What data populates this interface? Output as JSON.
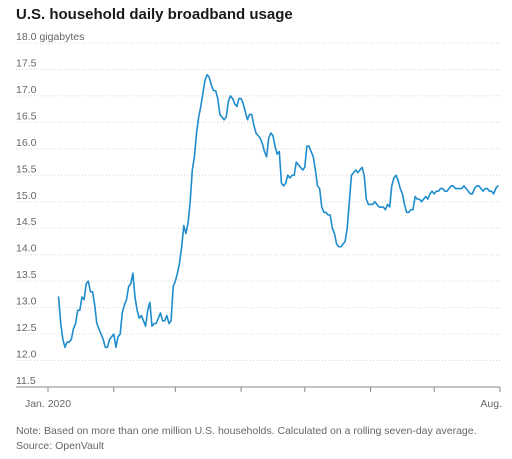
{
  "title": "U.S. household daily broadband usage",
  "note": "Note: Based on more than one million U.S. households. Calculated on a rolling seven-day average.",
  "source": "Source: OpenVault",
  "colors": {
    "line": "#1f8ccc",
    "text": "#666666",
    "title": "#1a1a1a"
  },
  "chart_data": {
    "type": "line",
    "title": "U.S. household daily broadband usage",
    "xlabel": "",
    "ylabel": "",
    "unit_label": "gigabytes",
    "ylim": [
      11.5,
      18.0
    ],
    "yticks": [
      11.5,
      12.0,
      12.5,
      13.0,
      13.5,
      14.0,
      14.5,
      15.0,
      15.5,
      16.0,
      16.5,
      17.0,
      17.5,
      18.0
    ],
    "ytick_labels": [
      "11.5",
      "12.0",
      "12.5",
      "13.0",
      "13.5",
      "14.0",
      "14.5",
      "15.0",
      "15.5",
      "16.0",
      "16.5",
      "17.0",
      "17.5",
      "18.0"
    ],
    "xlim": [
      0,
      213
    ],
    "x_unit": "day of 2020 (0 = Jan. 1)",
    "month_ticks": [
      0,
      31,
      60,
      91,
      121,
      152,
      182,
      213
    ],
    "x_tick_labels": [
      {
        "x": 0,
        "label": "Jan. 2020"
      },
      {
        "x": 213,
        "label": "Aug."
      }
    ],
    "grid": true,
    "legend": "none",
    "series": [
      {
        "x": [
          5,
          6,
          7,
          8,
          9,
          10,
          11,
          12,
          13,
          14,
          15,
          16,
          17,
          18,
          19,
          20,
          21,
          22,
          23,
          24,
          25,
          26,
          27,
          28,
          29,
          30,
          31,
          32,
          33,
          34,
          35,
          36,
          37,
          38,
          39,
          40,
          41,
          42,
          43,
          44,
          45,
          46,
          47,
          48,
          49,
          50,
          51,
          52,
          53,
          54,
          55,
          56,
          57,
          58,
          59,
          60,
          61,
          62,
          63,
          64,
          65,
          66,
          67,
          68,
          69,
          70,
          71,
          72,
          73,
          74,
          75,
          76,
          77,
          78,
          79,
          80,
          81,
          82,
          83,
          84,
          85,
          86,
          87,
          88,
          89,
          90,
          91,
          92,
          93,
          94,
          95,
          96,
          97,
          98,
          99,
          100,
          101,
          102,
          103,
          104,
          105,
          106,
          107,
          108,
          109,
          110,
          111,
          112,
          113,
          114,
          115,
          116,
          117,
          118,
          119,
          120,
          121,
          122,
          123,
          124,
          125,
          126,
          127,
          128,
          129,
          130,
          131,
          132,
          133,
          134,
          135,
          136,
          137,
          138,
          139,
          140,
          141,
          142,
          143,
          144,
          145,
          146,
          147,
          148,
          149,
          150,
          151,
          152,
          153,
          154,
          155,
          156,
          157,
          158,
          159,
          160,
          161,
          162,
          163,
          164,
          165,
          166,
          167,
          168,
          169,
          170,
          171,
          172,
          173,
          174,
          175,
          176,
          177,
          178,
          179,
          180,
          181,
          182,
          183,
          184,
          185,
          186,
          187,
          188,
          189,
          190,
          191,
          192,
          193,
          194,
          195,
          196,
          197,
          198,
          199,
          200,
          201,
          202,
          203,
          204,
          205,
          206,
          207,
          208,
          209,
          210,
          211,
          212
        ],
        "values": [
          13.2,
          12.7,
          12.4,
          12.25,
          12.35,
          12.35,
          12.4,
          12.6,
          12.7,
          12.95,
          12.95,
          13.2,
          13.15,
          13.45,
          13.5,
          13.3,
          13.3,
          13.05,
          12.7,
          12.6,
          12.5,
          12.4,
          12.25,
          12.25,
          12.4,
          12.45,
          12.5,
          12.25,
          12.45,
          12.5,
          12.9,
          13.05,
          13.15,
          13.4,
          13.45,
          13.65,
          13.2,
          12.95,
          12.8,
          12.85,
          12.75,
          12.65,
          12.95,
          13.1,
          12.65,
          12.7,
          12.7,
          12.8,
          12.9,
          12.75,
          12.75,
          12.85,
          12.7,
          12.75,
          13.4,
          13.5,
          13.65,
          13.85,
          14.15,
          14.55,
          14.4,
          14.6,
          15.0,
          15.6,
          15.85,
          16.3,
          16.6,
          16.8,
          17.05,
          17.3,
          17.4,
          17.35,
          17.2,
          17.1,
          17.1,
          16.95,
          16.65,
          16.6,
          16.55,
          16.6,
          16.9,
          17.0,
          16.95,
          16.85,
          16.8,
          16.95,
          16.95,
          16.85,
          16.7,
          16.55,
          16.65,
          16.65,
          16.45,
          16.3,
          16.25,
          16.2,
          16.1,
          15.95,
          15.85,
          16.2,
          16.3,
          16.25,
          16.05,
          15.9,
          15.95,
          15.35,
          15.3,
          15.35,
          15.5,
          15.45,
          15.5,
          15.5,
          15.75,
          15.7,
          15.65,
          15.6,
          15.65,
          16.05,
          16.05,
          15.95,
          15.85,
          15.6,
          15.3,
          15.25,
          14.9,
          14.8,
          14.8,
          14.75,
          14.75,
          14.5,
          14.4,
          14.2,
          14.15,
          14.15,
          14.2,
          14.25,
          14.5,
          15.0,
          15.5,
          15.55,
          15.6,
          15.55,
          15.6,
          15.65,
          15.5,
          15.05,
          14.95,
          14.95,
          14.95,
          15.0,
          14.95,
          14.9,
          14.9,
          14.9,
          14.85,
          14.95,
          14.9,
          15.3,
          15.45,
          15.5,
          15.4,
          15.25,
          15.15,
          14.95,
          14.8,
          14.8,
          14.85,
          14.85,
          15.1,
          15.05,
          15.05,
          15.0,
          15.05,
          15.1,
          15.05,
          15.15,
          15.2,
          15.15,
          15.2,
          15.2,
          15.25,
          15.25,
          15.2,
          15.2,
          15.25,
          15.3,
          15.3,
          15.25,
          15.25,
          15.25,
          15.25,
          15.3,
          15.25,
          15.2,
          15.15,
          15.15,
          15.25,
          15.3,
          15.3,
          15.25,
          15.2,
          15.25,
          15.25,
          15.2,
          15.2,
          15.15,
          15.25,
          15.3
        ]
      }
    ]
  }
}
